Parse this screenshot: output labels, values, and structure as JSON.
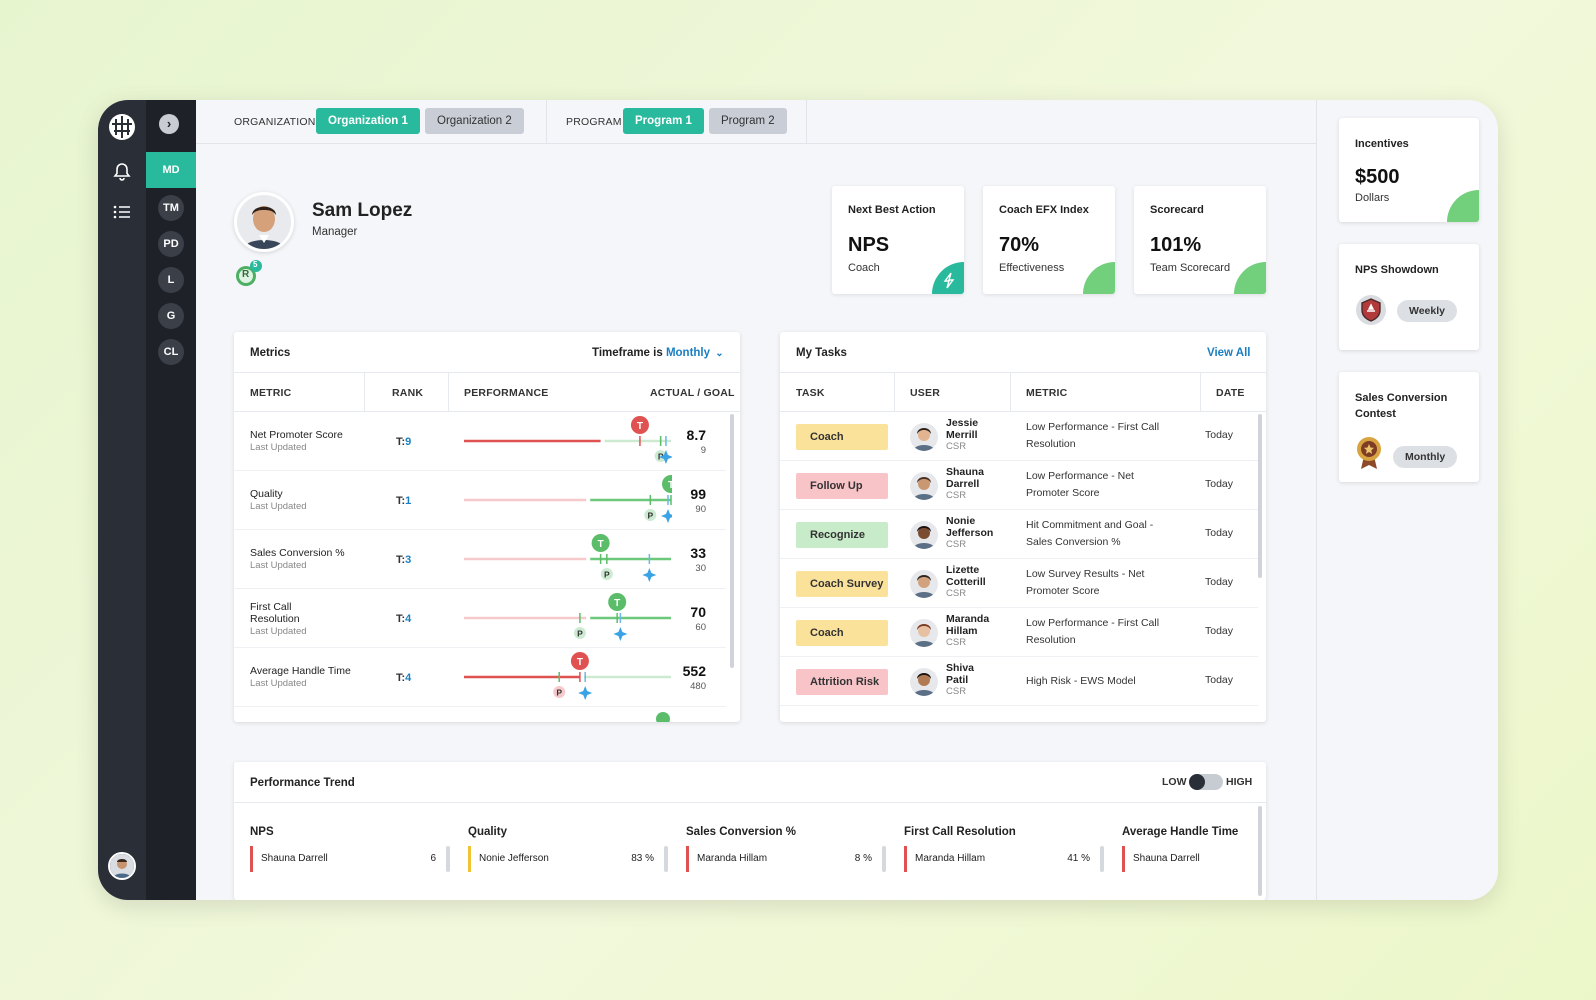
{
  "nav": {
    "teams": [
      "MD",
      "TM",
      "PD",
      "L",
      "G",
      "CL"
    ],
    "expand_icon": "chevron-right-icon",
    "rail_icons": [
      "bell-icon",
      "list-icon"
    ]
  },
  "topbar": {
    "org_label": "ORGANIZATION",
    "org1": "Organization 1",
    "org2": "Organization 2",
    "program_label": "PROGRAM",
    "program1": "Program 1",
    "program2": "Program 2"
  },
  "profile": {
    "name": "Sam Lopez",
    "role": "Manager",
    "badge_letter": "R",
    "badge_count": "5"
  },
  "kpis": [
    {
      "title": "Next Best Action",
      "value": "NPS",
      "sub": "Coach",
      "icon": "lightning-icon"
    },
    {
      "title": "Coach EFX Index",
      "value": "70%",
      "sub": "Effectiveness"
    },
    {
      "title": "Scorecard",
      "value": "101%",
      "sub": "Team Scorecard"
    }
  ],
  "metrics": {
    "title": "Metrics",
    "timeframe_label": "Timeframe is",
    "timeframe_value": "Monthly",
    "headers": [
      "METRIC",
      "RANK",
      "PERFORMANCE",
      "ACTUAL / GOAL"
    ],
    "last_updated": "Last Updated",
    "rank_prefix": "T:",
    "rows": [
      {
        "name": "Net Promoter Score",
        "rank": "9",
        "actual": "8.7",
        "goal": "9",
        "status": "low",
        "marker_pos": 0.85,
        "p_pos": 0.95,
        "star_pos": 0.99
      },
      {
        "name": "Quality",
        "rank": "1",
        "actual": "99",
        "goal": "90",
        "status": "high",
        "marker_pos": 1.0,
        "p_pos": 0.9,
        "star_pos": 1.0
      },
      {
        "name": "Sales Conversion %",
        "rank": "3",
        "actual": "33",
        "goal": "30",
        "status": "high",
        "marker_pos": 0.66,
        "p_pos": 0.69,
        "star_pos": 0.91
      },
      {
        "name": "First Call Resolution",
        "rank": "4",
        "actual": "70",
        "goal": "60",
        "status": "high",
        "marker_pos": 0.74,
        "p_pos": 0.56,
        "star_pos": 0.77
      },
      {
        "name": "Average Handle Time",
        "rank": "4",
        "actual": "552",
        "goal": "480",
        "status": "low",
        "marker_pos": 0.56,
        "p_pos": 0.46,
        "star_pos": 0.6
      }
    ]
  },
  "tasks": {
    "title": "My Tasks",
    "view_all": "View All",
    "headers": [
      "TASK",
      "USER",
      "METRIC",
      "DATE"
    ],
    "rows": [
      {
        "task": "Coach",
        "color": "#fbe29a",
        "first": "Jessie",
        "last": "Merrill",
        "role": "CSR",
        "metric": "Low Performance - First Call Resolution",
        "date": "Today"
      },
      {
        "task": "Follow Up",
        "color": "#f8c4c8",
        "first": "Shauna",
        "last": "Darrell",
        "role": "CSR",
        "metric": "Low Performance - Net Promoter Score",
        "date": "Today"
      },
      {
        "task": "Recognize",
        "color": "#c8ebc9",
        "first": "Nonie",
        "last": "Jefferson",
        "role": "CSR",
        "metric": "Hit Commitment and Goal - Sales Conversion %",
        "date": "Today"
      },
      {
        "task": "Coach Survey",
        "color": "#fbe29a",
        "first": "Lizette",
        "last": "Cotterill",
        "role": "CSR",
        "metric": "Low Survey Results - Net Promoter Score",
        "date": "Today"
      },
      {
        "task": "Coach",
        "color": "#fbe29a",
        "first": "Maranda",
        "last": "Hillam",
        "role": "CSR",
        "metric": "Low Performance - First Call Resolution",
        "date": "Today"
      },
      {
        "task": "Attrition Risk",
        "color": "#f8c4c8",
        "first": "Shiva",
        "last": "Patil",
        "role": "CSR",
        "metric": "High Risk - EWS Model",
        "date": "Today"
      }
    ]
  },
  "trend": {
    "title": "Performance Trend",
    "low": "LOW",
    "high": "HIGH",
    "columns": [
      {
        "heading": "NPS",
        "name": "Shauna Darrell",
        "value": "6",
        "color": "#e05252"
      },
      {
        "heading": "Quality",
        "name": "Nonie Jefferson",
        "value": "83 %",
        "color": "#f1c232"
      },
      {
        "heading": "Sales Conversion %",
        "name": "Maranda Hillam",
        "value": "8 %",
        "color": "#e05252"
      },
      {
        "heading": "First Call Resolution",
        "name": "Maranda Hillam",
        "value": "41 %",
        "color": "#e05252"
      },
      {
        "heading": "Average Handle Time",
        "name": "Shauna Darrell",
        "value": "",
        "color": "#e05252"
      }
    ]
  },
  "sidebar_right": {
    "incentives": {
      "title": "Incentives",
      "value": "$500",
      "sub": "Dollars"
    },
    "nps_showdown": {
      "title": "NPS Showdown",
      "period": "Weekly"
    },
    "sales_contest": {
      "title": "Sales Conversion Contest",
      "period": "Monthly"
    }
  },
  "colors": {
    "accent": "#29b99c",
    "green": "#72cf7c",
    "red": "#e05252",
    "link": "#1a7fc0"
  }
}
